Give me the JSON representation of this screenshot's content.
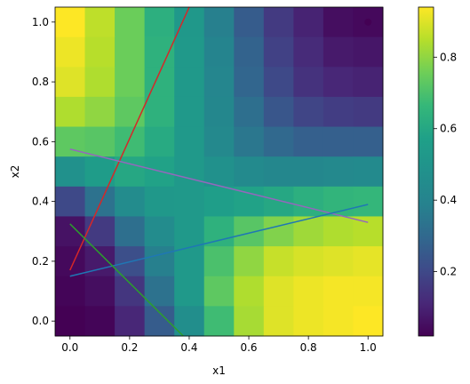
{
  "chart_data": {
    "type": "heatmap",
    "title": "",
    "xlabel": "x1",
    "ylabel": "x2",
    "xlim": [
      -0.05,
      1.05
    ],
    "ylim": [
      -0.05,
      1.05
    ],
    "grid": false,
    "colormap": "viridis",
    "color_range": [
      0.02,
      0.94
    ],
    "x_ticks": [
      "0.0",
      "0.2",
      "0.4",
      "0.6",
      "0.8",
      "1.0"
    ],
    "y_ticks": [
      "0.0",
      "0.2",
      "0.4",
      "0.6",
      "0.8",
      "1.0"
    ],
    "colorbar_ticks": [
      "0.2",
      "0.4",
      "0.6",
      "0.8"
    ],
    "heatmap": {
      "x_centers": [
        0.0,
        0.1,
        0.2,
        0.3,
        0.4,
        0.5,
        0.6,
        0.7,
        0.8,
        0.9,
        1.0
      ],
      "y_centers": [
        1.0,
        0.9,
        0.8,
        0.7,
        0.6,
        0.5,
        0.4,
        0.3,
        0.2,
        0.1,
        0.0
      ],
      "values": [
        [
          0.94,
          0.86,
          0.75,
          0.63,
          0.52,
          0.38,
          0.26,
          0.16,
          0.1,
          0.05,
          0.04
        ],
        [
          0.92,
          0.85,
          0.75,
          0.64,
          0.53,
          0.4,
          0.28,
          0.18,
          0.12,
          0.08,
          0.07
        ],
        [
          0.9,
          0.84,
          0.75,
          0.64,
          0.53,
          0.41,
          0.29,
          0.2,
          0.14,
          0.11,
          0.1
        ],
        [
          0.84,
          0.8,
          0.73,
          0.64,
          0.53,
          0.42,
          0.32,
          0.24,
          0.19,
          0.17,
          0.16
        ],
        [
          0.73,
          0.72,
          0.68,
          0.61,
          0.53,
          0.43,
          0.35,
          0.3,
          0.27,
          0.27,
          0.27
        ],
        [
          0.48,
          0.55,
          0.6,
          0.58,
          0.53,
          0.48,
          0.44,
          0.42,
          0.42,
          0.43,
          0.44
        ],
        [
          0.2,
          0.33,
          0.45,
          0.52,
          0.53,
          0.56,
          0.58,
          0.6,
          0.63,
          0.65,
          0.66
        ],
        [
          0.06,
          0.16,
          0.32,
          0.45,
          0.53,
          0.64,
          0.72,
          0.78,
          0.82,
          0.84,
          0.85
        ],
        [
          0.04,
          0.08,
          0.22,
          0.38,
          0.53,
          0.7,
          0.8,
          0.87,
          0.89,
          0.9,
          0.91
        ],
        [
          0.03,
          0.05,
          0.15,
          0.33,
          0.53,
          0.73,
          0.84,
          0.9,
          0.92,
          0.93,
          0.93
        ],
        [
          0.02,
          0.03,
          0.11,
          0.26,
          0.46,
          0.68,
          0.83,
          0.9,
          0.92,
          0.93,
          0.94
        ]
      ]
    },
    "lines": [
      {
        "color": "#d62728",
        "x": [
          0.0,
          0.4
        ],
        "y": [
          0.17,
          1.05
        ]
      },
      {
        "color": "#9467bd",
        "x": [
          0.0,
          1.0
        ],
        "y": [
          0.575,
          0.33
        ]
      },
      {
        "color": "#1f77b4",
        "x": [
          0.0,
          1.0
        ],
        "y": [
          0.15,
          0.39
        ]
      },
      {
        "color": "#2ca02c",
        "x": [
          0.0,
          0.38
        ],
        "y": [
          0.325,
          -0.05
        ]
      }
    ],
    "points": [
      {
        "x": 1.0,
        "y": 1.0,
        "color": "#440154"
      }
    ]
  }
}
